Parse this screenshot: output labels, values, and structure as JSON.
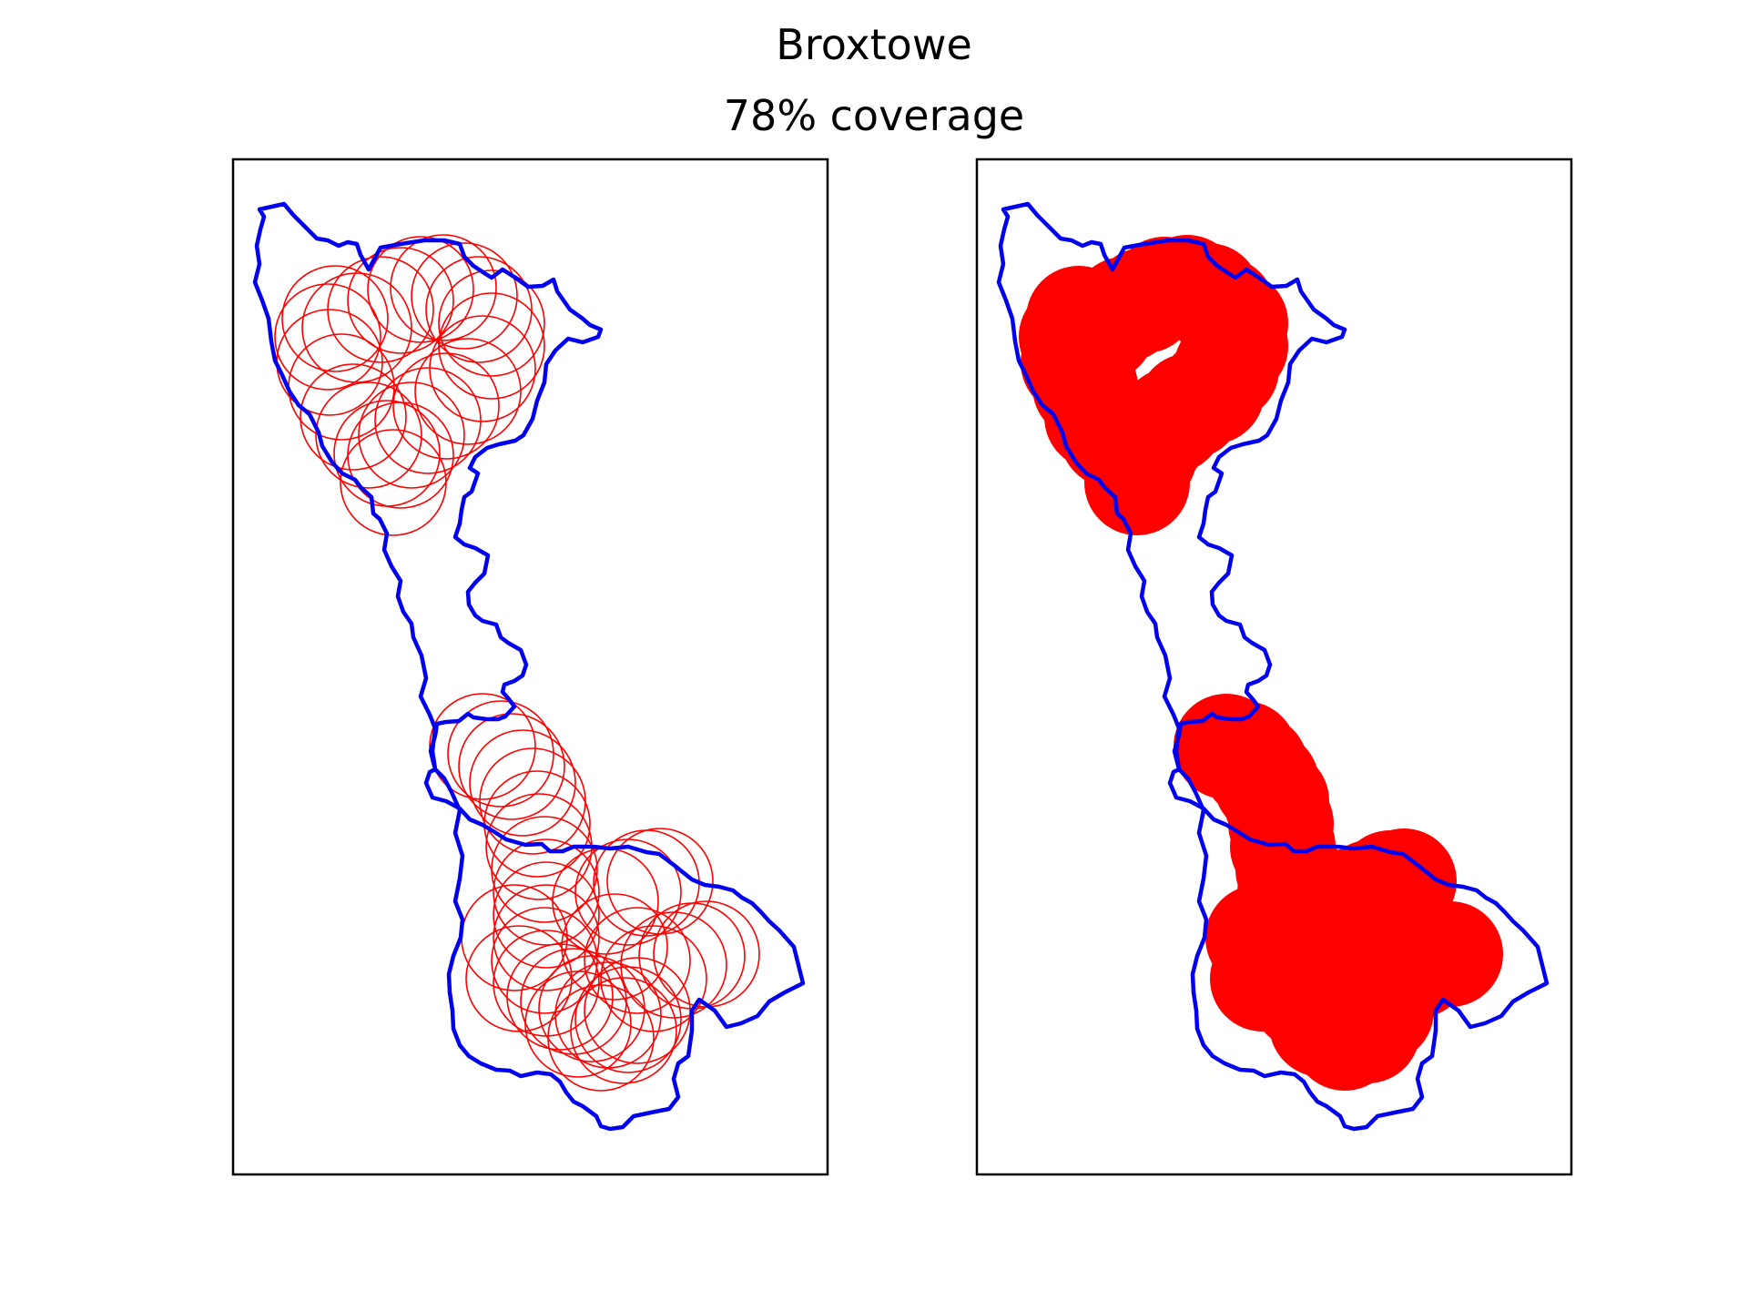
{
  "title": "Broxtowe",
  "subtitle": "78% coverage",
  "colors": {
    "boundary": "#0000ee",
    "coverage": "#ff0000",
    "frame": "#000000",
    "background": "#ffffff"
  },
  "panels": [
    {
      "name": "coverage-circles-outline",
      "style": "outline"
    },
    {
      "name": "coverage-circles-filled",
      "style": "filled"
    }
  ]
}
